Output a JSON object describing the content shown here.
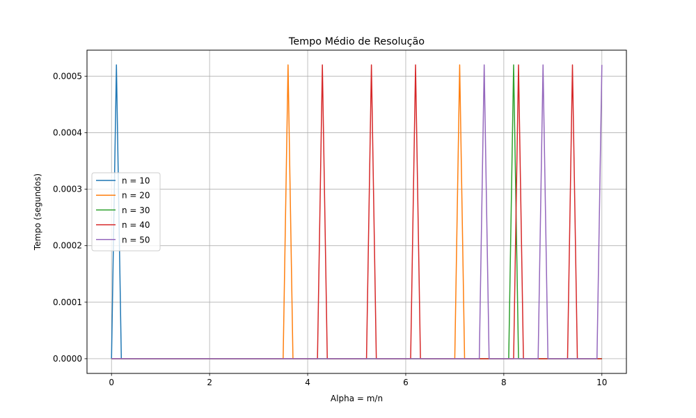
{
  "chart_data": {
    "type": "line",
    "title": "Tempo Médio de Resolução",
    "xlabel": "Alpha = m/n",
    "ylabel": "Tempo (segundos)",
    "xlim": [
      -0.5,
      10.5
    ],
    "ylim": [
      -2.6e-05,
      0.000546
    ],
    "xticks": [
      0,
      2,
      4,
      6,
      8,
      10
    ],
    "xtick_labels": [
      "0",
      "2",
      "4",
      "6",
      "8",
      "10"
    ],
    "yticks": [
      0,
      0.0001,
      0.0002,
      0.0003,
      0.0004,
      0.0005
    ],
    "ytick_labels": [
      "0.0000",
      "0.0001",
      "0.0002",
      "0.0003",
      "0.0004",
      "0.0005"
    ],
    "grid": true,
    "legend_position": "center-left",
    "x": {
      "start": 0,
      "end": 10,
      "step": 0.1
    },
    "spike_value": 0.00052,
    "series": [
      {
        "name": "n = 10",
        "color": "#1f77b4",
        "spike_x": [
          0.1
        ]
      },
      {
        "name": "n = 20",
        "color": "#ff7f0e",
        "spike_x": [
          3.6,
          7.1
        ]
      },
      {
        "name": "n = 30",
        "color": "#2ca02c",
        "spike_x": [
          8.2
        ]
      },
      {
        "name": "n = 40",
        "color": "#d62728",
        "spike_x": [
          4.3,
          5.3,
          6.2,
          8.3,
          9.4
        ]
      },
      {
        "name": "n = 50",
        "color": "#9467bd",
        "spike_x": [
          7.6,
          8.8,
          10.0
        ]
      }
    ]
  }
}
